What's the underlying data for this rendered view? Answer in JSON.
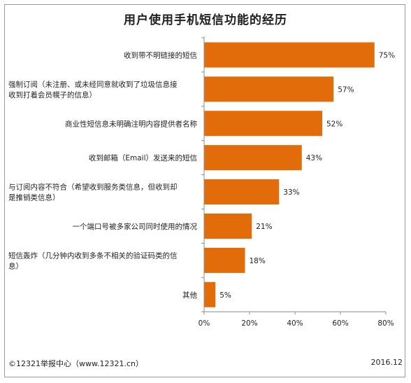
{
  "title": "用户使用手机短信功能的经历",
  "footer": {
    "source": "©12321举报中心（www.12321.cn）",
    "date": "2016.12"
  },
  "colors": {
    "bar": "#e36c0a",
    "axis": "#8c8c8c"
  },
  "chart_data": {
    "type": "bar",
    "orientation": "horizontal",
    "title": "用户使用手机短信功能的经历",
    "categories": [
      [
        "收到带不明链接的短信"
      ],
      [
        "强制订阅（未注册、或未经同意就收到了垃圾信息接",
        "收到打着会员幌子的信息）"
      ],
      [
        "商业性短信息未明确注明内容提供者名称"
      ],
      [
        "收到邮箱（Email）发送来的短信"
      ],
      [
        "与订阅内容不符合（希望收到服务类信息，但收到却",
        "是推销类信息）"
      ],
      [
        "一个端口号被多家公司同时使用的情况"
      ],
      [
        "短信轰炸（几分钟内收到多条不相关的验证码类的信",
        "息）"
      ],
      [
        "其他"
      ]
    ],
    "values": [
      75,
      57,
      52,
      43,
      33,
      21,
      18,
      5
    ],
    "value_labels": [
      "75%",
      "57%",
      "52%",
      "43%",
      "33%",
      "21%",
      "18%",
      "5%"
    ],
    "xlim": [
      0,
      80
    ],
    "x_ticks": [
      0,
      20,
      40,
      60,
      80
    ],
    "x_tick_labels": [
      "0%",
      "20%",
      "40%",
      "60%",
      "80%"
    ],
    "grid": false,
    "legend": "none"
  }
}
